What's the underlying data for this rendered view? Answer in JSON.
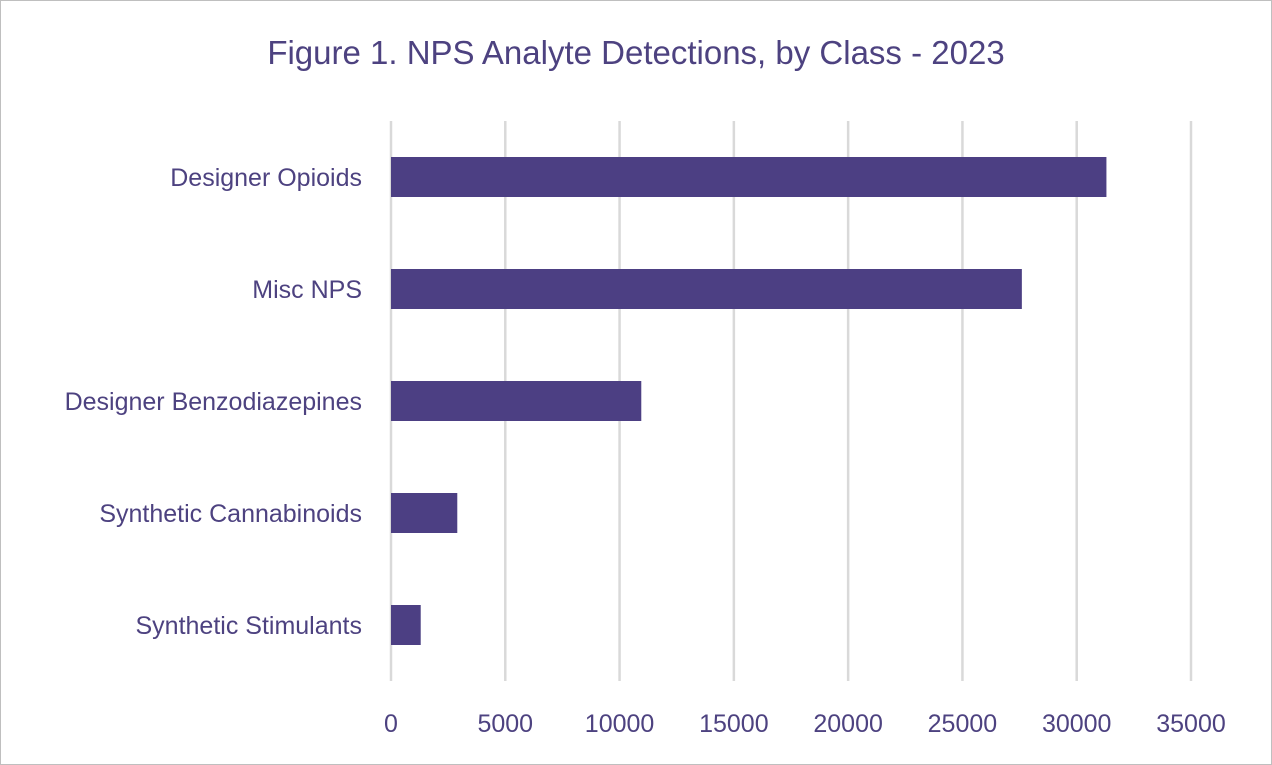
{
  "colors": {
    "bar": "#4c3f83",
    "text": "#4d4280",
    "grid": "#d9d9d9",
    "border": "#bfbfbf"
  },
  "chart_data": {
    "type": "bar",
    "orientation": "horizontal",
    "title": "Figure 1. NPS Analyte Detections, by Class - 2023",
    "categories": [
      "Designer Opioids",
      "Misc NPS",
      "Designer Benzodiazepines",
      "Synthetic Cannabinoids",
      "Synthetic Stimulants"
    ],
    "values": [
      31300,
      27600,
      10950,
      2900,
      1300
    ],
    "xlim": [
      0,
      35000
    ],
    "xticks": [
      "0",
      "5000",
      "10000",
      "15000",
      "20000",
      "25000",
      "30000",
      "35000"
    ],
    "grid": true,
    "legend": false
  }
}
